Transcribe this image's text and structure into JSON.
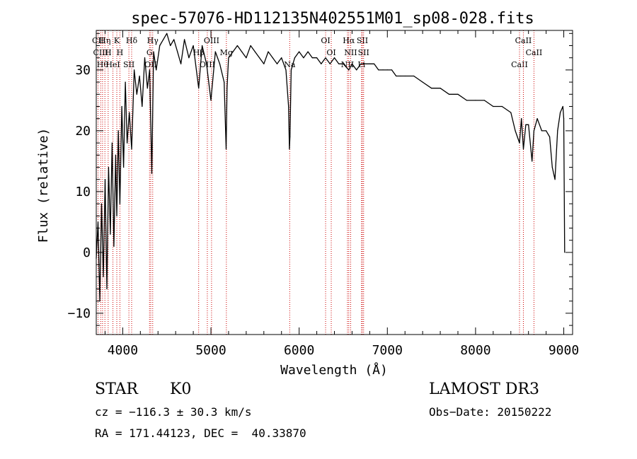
{
  "chart_data": {
    "type": "line",
    "title": "spec-57076-HD112135N402551M01_sp08-028.fits",
    "xlabel": "Wavelength (Å)",
    "ylabel": "Flux (relative)",
    "xlim": [
      3700,
      9100
    ],
    "ylim": [
      -13.5,
      36.5
    ],
    "xticks": [
      4000,
      5000,
      6000,
      7000,
      8000,
      9000
    ],
    "yticks": [
      -10,
      0,
      10,
      20,
      30
    ],
    "grid": false,
    "series": [
      {
        "color": "#000000",
        "x": [
          3700,
          3720,
          3740,
          3760,
          3780,
          3800,
          3820,
          3840,
          3860,
          3880,
          3900,
          3920,
          3933,
          3950,
          3968,
          3990,
          4010,
          4030,
          4050,
          4075,
          4101,
          4130,
          4160,
          4190,
          4220,
          4250,
          4280,
          4305,
          4330,
          4350,
          4380,
          4420,
          4460,
          4500,
          4540,
          4580,
          4620,
          4660,
          4700,
          4750,
          4800,
          4861,
          4900,
          4950,
          5000,
          5050,
          5100,
          5150,
          5172,
          5183,
          5200,
          5250,
          5300,
          5350,
          5400,
          5450,
          5500,
          5550,
          5600,
          5650,
          5700,
          5750,
          5800,
          5850,
          5880,
          5890,
          5896,
          5910,
          5950,
          6000,
          6050,
          6100,
          6150,
          6200,
          6250,
          6300,
          6350,
          6400,
          6450,
          6500,
          6563,
          6600,
          6650,
          6700,
          6750,
          6800,
          6850,
          6900,
          6950,
          7000,
          7050,
          7100,
          7150,
          7200,
          7300,
          7400,
          7500,
          7600,
          7700,
          7800,
          7900,
          8000,
          8100,
          8200,
          8300,
          8400,
          8450,
          8498,
          8520,
          8542,
          8570,
          8600,
          8640,
          8662,
          8700,
          8750,
          8800,
          8840,
          8870,
          8900,
          8930,
          8960,
          8990,
          9000,
          9010
        ],
        "values": [
          -1,
          5,
          -8,
          8,
          -4,
          12,
          -6,
          14,
          3,
          18,
          1,
          16,
          6,
          20,
          8,
          24,
          14,
          28,
          18,
          23,
          17,
          30,
          26,
          29,
          24,
          32,
          27,
          30,
          13,
          33,
          30,
          34,
          35,
          36,
          34,
          35,
          33,
          31,
          35,
          32,
          34,
          27,
          34,
          31,
          25,
          33,
          31,
          28,
          17,
          27,
          32,
          33,
          34,
          33,
          32,
          34,
          33,
          32,
          31,
          33,
          32,
          31,
          32,
          30,
          24,
          17,
          19,
          30,
          32,
          33,
          32,
          33,
          32,
          32,
          31,
          32,
          31,
          32,
          31,
          31,
          30,
          31,
          30,
          31,
          31,
          31,
          31,
          30,
          30,
          30,
          30,
          29,
          29,
          29,
          29,
          28,
          27,
          27,
          26,
          26,
          25,
          25,
          25,
          24,
          24,
          23,
          20,
          18,
          22,
          17,
          21,
          21,
          15,
          20,
          22,
          20,
          20,
          19,
          14,
          12,
          20,
          23,
          24,
          22,
          0
        ]
      }
    ],
    "lines": [
      {
        "x": 3720,
        "label": "CII"
      },
      {
        "x": 3750,
        "label": "CIII"
      },
      {
        "x": 3771,
        "label": "Hθ"
      },
      {
        "x": 3798,
        "label": "Hη"
      },
      {
        "x": 3835,
        "label": "H"
      },
      {
        "x": 3889,
        "label": "HeI"
      },
      {
        "x": 3933,
        "label": "K"
      },
      {
        "x": 3968,
        "label": "H"
      },
      {
        "x": 4070,
        "label": "SII"
      },
      {
        "x": 4101,
        "label": "Hδ"
      },
      {
        "x": 4304,
        "label": "G"
      },
      {
        "x": 4318,
        "label": "OII"
      },
      {
        "x": 4340,
        "label": "Hγ"
      },
      {
        "x": 4861,
        "label": "Hβ"
      },
      {
        "x": 4959,
        "label": "OIII"
      },
      {
        "x": 5007,
        "label": "OIII"
      },
      {
        "x": 5175,
        "label": "Mg"
      },
      {
        "x": 5893,
        "label": "Na"
      },
      {
        "x": 6300,
        "label": "OI"
      },
      {
        "x": 6364,
        "label": "OI"
      },
      {
        "x": 6548,
        "label": "NII"
      },
      {
        "x": 6563,
        "label": "Hα"
      },
      {
        "x": 6584,
        "label": "NII"
      },
      {
        "x": 6707,
        "label": "Li"
      },
      {
        "x": 6717,
        "label": "SII"
      },
      {
        "x": 6731,
        "label": "SII"
      },
      {
        "x": 8498,
        "label": "CaII"
      },
      {
        "x": 8542,
        "label": "CaII"
      },
      {
        "x": 8662,
        "label": "CaII"
      }
    ],
    "line_color": "#cc0000"
  },
  "info": {
    "class_label": "STAR",
    "subclass": "K0",
    "cz": "cz = −116.3 ± 30.3 km/s",
    "coords": "RA = 171.44123, DEC =  40.33870",
    "survey": "LAMOST DR3",
    "obs_date": "Obs−Date: 20150222"
  }
}
